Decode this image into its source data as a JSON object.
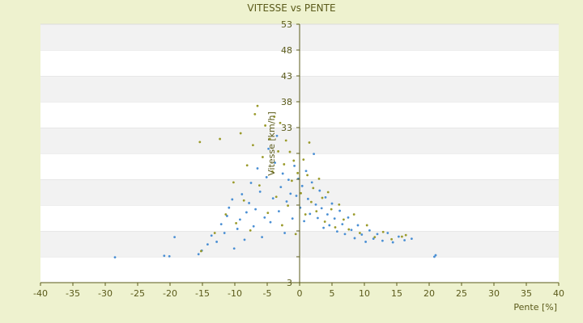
{
  "colors": {
    "background": "#eef2cf",
    "plot_band_light": "#ffffff",
    "plot_band_dark": "#f2f2f2",
    "axis_line": "#5a5a1a",
    "text": "#5a5a1a",
    "series_a": "#4a8fd4",
    "series_b": "#9a9a2a"
  },
  "chart_data": {
    "type": "scatter",
    "title": "VITESSE vs PENTE",
    "xlabel": "Pente [%]",
    "ylabel": "Vitesse [km/h]",
    "xlim": [
      -40,
      40
    ],
    "ylim": [
      3,
      53
    ],
    "x_ticks": [
      -40,
      -35,
      -30,
      -25,
      -20,
      -15,
      -10,
      -5,
      0,
      5,
      10,
      15,
      20,
      25,
      30,
      35,
      40
    ],
    "y_ticks": [
      3,
      8,
      13,
      18,
      23,
      28,
      33,
      38,
      43,
      48,
      53
    ],
    "y_tick_labels": [
      "3",
      "",
      "",
      "",
      "",
      "",
      "33",
      "38",
      "43",
      "48",
      "53"
    ],
    "grid": "horizontal alternating bands",
    "legend": "none",
    "series": [
      {
        "color": "#4a8fd4",
        "points": [
          [
            -28.5,
            7.9
          ],
          [
            -20.9,
            8.2
          ],
          [
            -20.1,
            8.1
          ],
          [
            -19.3,
            11.8
          ],
          [
            -15.6,
            8.5
          ],
          [
            -15.1,
            9.2
          ],
          [
            -14.2,
            10.4
          ],
          [
            -13.6,
            12.1
          ],
          [
            -12.8,
            10.9
          ],
          [
            -12.1,
            14.3
          ],
          [
            -11.6,
            12.6
          ],
          [
            -11.2,
            15.9
          ],
          [
            -10.9,
            17.5
          ],
          [
            -10.4,
            19.1
          ],
          [
            -10.1,
            9.6
          ],
          [
            -9.6,
            13.4
          ],
          [
            -9.2,
            15.2
          ],
          [
            -8.9,
            20.1
          ],
          [
            -8.5,
            11.3
          ],
          [
            -8.2,
            16.6
          ],
          [
            -7.8,
            18.4
          ],
          [
            -7.5,
            22.3
          ],
          [
            -7.1,
            13.9
          ],
          [
            -6.8,
            17.2
          ],
          [
            -6.5,
            25.1
          ],
          [
            -6.1,
            20.6
          ],
          [
            -5.8,
            11.8
          ],
          [
            -5.4,
            15.6
          ],
          [
            -5.1,
            23.4
          ],
          [
            -4.8,
            28.9
          ],
          [
            -4.5,
            14.7
          ],
          [
            -4.1,
            19.3
          ],
          [
            -3.8,
            26.2
          ],
          [
            -3.5,
            31.4
          ],
          [
            -3.2,
            16.8
          ],
          [
            -2.9,
            21.5
          ],
          [
            -2.6,
            24.1
          ],
          [
            -2.3,
            12.6
          ],
          [
            -2.0,
            18.7
          ],
          [
            -1.7,
            22.9
          ],
          [
            -1.4,
            20.2
          ],
          [
            -1.1,
            15.4
          ],
          [
            -0.8,
            25.6
          ],
          [
            -0.5,
            19.8
          ],
          [
            -0.2,
            23.1
          ],
          [
            0.1,
            17.5
          ],
          [
            0.4,
            21.7
          ],
          [
            0.7,
            14.9
          ],
          [
            1.0,
            24.6
          ],
          [
            1.3,
            19.2
          ],
          [
            1.6,
            16.3
          ],
          [
            1.9,
            22.4
          ],
          [
            2.2,
            27.9
          ],
          [
            2.5,
            18.1
          ],
          [
            2.8,
            15.5
          ],
          [
            3.1,
            20.8
          ],
          [
            3.4,
            17.4
          ],
          [
            3.7,
            13.6
          ],
          [
            4.0,
            19.5
          ],
          [
            4.3,
            16.2
          ],
          [
            4.6,
            14.1
          ],
          [
            5.0,
            18.3
          ],
          [
            5.4,
            15.4
          ],
          [
            5.8,
            12.9
          ],
          [
            6.2,
            16.9
          ],
          [
            6.6,
            14.3
          ],
          [
            7.0,
            12.4
          ],
          [
            7.5,
            15.6
          ],
          [
            8.0,
            13.2
          ],
          [
            8.5,
            11.6
          ],
          [
            9.0,
            14.1
          ],
          [
            9.6,
            12.3
          ],
          [
            10.2,
            10.9
          ],
          [
            10.8,
            13.1
          ],
          [
            11.4,
            11.5
          ],
          [
            12.0,
            12.4
          ],
          [
            12.8,
            11.1
          ],
          [
            13.6,
            12.6
          ],
          [
            14.4,
            10.8
          ],
          [
            15.3,
            11.9
          ],
          [
            16.2,
            11.2
          ],
          [
            17.3,
            11.5
          ],
          [
            20.8,
            8.0
          ],
          [
            21.0,
            8.3
          ]
        ]
      },
      {
        "color": "#9a9a2a",
        "points": [
          [
            -15.4,
            30.2
          ],
          [
            -15.2,
            9.1
          ],
          [
            -13.1,
            12.6
          ],
          [
            -12.3,
            30.8
          ],
          [
            -11.4,
            16.2
          ],
          [
            -10.2,
            22.4
          ],
          [
            -9.8,
            14.5
          ],
          [
            -9.1,
            31.9
          ],
          [
            -8.6,
            18.9
          ],
          [
            -8.1,
            25.7
          ],
          [
            -7.6,
            13.1
          ],
          [
            -7.2,
            29.6
          ],
          [
            -6.9,
            35.6
          ],
          [
            -6.5,
            37.2
          ],
          [
            -6.2,
            21.8
          ],
          [
            -5.7,
            27.3
          ],
          [
            -5.3,
            33.4
          ],
          [
            -4.9,
            16.5
          ],
          [
            -4.6,
            30.8
          ],
          [
            -4.2,
            24.5
          ],
          [
            -3.9,
            35.1
          ],
          [
            -3.6,
            19.6
          ],
          [
            -3.3,
            28.4
          ],
          [
            -3.0,
            33.9
          ],
          [
            -2.7,
            14.1
          ],
          [
            -2.4,
            25.9
          ],
          [
            -2.1,
            30.5
          ],
          [
            -1.8,
            17.9
          ],
          [
            -1.5,
            28.3
          ],
          [
            -1.2,
            22.7
          ],
          [
            -0.9,
            26.6
          ],
          [
            -0.6,
            12.4
          ],
          [
            -0.3,
            24.2
          ],
          [
            0.2,
            20.3
          ],
          [
            0.6,
            26.8
          ],
          [
            0.9,
            16.2
          ],
          [
            1.2,
            23.8
          ],
          [
            1.5,
            30.1
          ],
          [
            1.8,
            18.6
          ],
          [
            2.1,
            21.3
          ],
          [
            2.6,
            16.8
          ],
          [
            3.0,
            23.1
          ],
          [
            3.5,
            19.4
          ],
          [
            3.9,
            14.8
          ],
          [
            4.4,
            20.5
          ],
          [
            4.9,
            17.2
          ],
          [
            5.5,
            13.7
          ],
          [
            6.1,
            18.1
          ],
          [
            6.8,
            15.2
          ],
          [
            7.6,
            13.3
          ],
          [
            8.4,
            16.2
          ],
          [
            9.3,
            12.6
          ],
          [
            10.4,
            14.1
          ],
          [
            11.6,
            11.8
          ],
          [
            12.9,
            12.8
          ],
          [
            14.2,
            11.4
          ],
          [
            15.8,
            11.9
          ],
          [
            16.4,
            12.2
          ]
        ]
      }
    ]
  }
}
